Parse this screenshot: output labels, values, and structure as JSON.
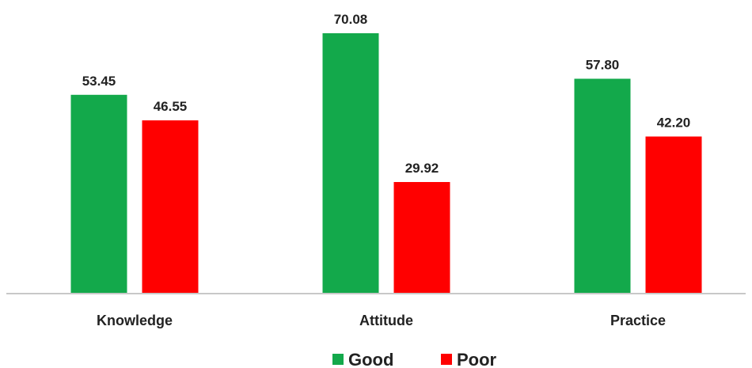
{
  "chart_data": {
    "type": "bar",
    "categories": [
      "Knowledge",
      "Attitude",
      "Practice"
    ],
    "series": [
      {
        "name": "Good",
        "color": "#13a94b",
        "values": [
          53.45,
          70.08,
          57.8
        ]
      },
      {
        "name": "Poor",
        "color": "#ff0000",
        "values": [
          46.55,
          29.92,
          42.2
        ]
      }
    ],
    "value_labels": {
      "Good": [
        "53.45",
        "70.08",
        "57.80"
      ],
      "Poor": [
        "46.55",
        "29.92",
        "42.20"
      ]
    },
    "title": "",
    "xlabel": "",
    "ylabel": "",
    "ylim": [
      0,
      70.08
    ],
    "grid": false,
    "legend_position": "bottom-center"
  }
}
